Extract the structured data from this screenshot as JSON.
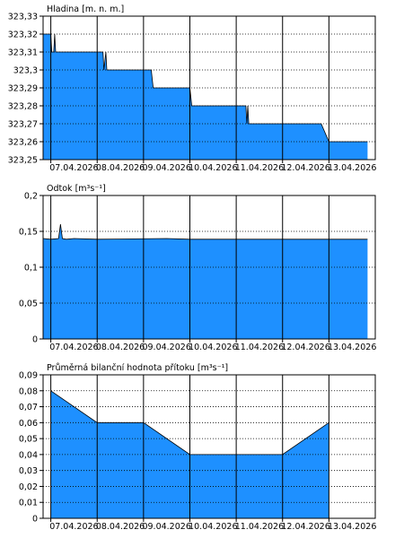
{
  "colors": {
    "fill": "#1e90ff",
    "stroke": "#000000",
    "grid": "#000000",
    "background": "#ffffff"
  },
  "chart_data": [
    {
      "type": "area",
      "title": "Hladina [m. n. m.]",
      "ylim": [
        323.25,
        323.33
      ],
      "yticks": [
        "323,33",
        "323,32",
        "323,31",
        "323,3",
        "323,29",
        "323,28",
        "323,27",
        "323,26",
        "323,25"
      ],
      "x_labels": [
        "07.04.2026",
        "08.04.2026",
        "09.04.2026",
        "10.04.2026",
        "11.04.2026",
        "12.04.2026",
        "13.04.2026"
      ],
      "x_range": [
        "06.04.2026 20:00",
        "14.04.2026 00:00"
      ],
      "grid": true,
      "series": [
        {
          "x": [
            "06.04.2026 20:00",
            "07.04.2026 00:00",
            "07.04.2026 00:30",
            "07.04.2026 01:30",
            "07.04.2026 02:00",
            "07.04.2026 02:30",
            "07.04.2026 03:30",
            "07.04.2026 04:00",
            "08.04.2026 03:00",
            "08.04.2026 03:30",
            "08.04.2026 04:30",
            "08.04.2026 05:00",
            "08.04.2026 05:30",
            "08.04.2026 06:00",
            "09.04.2026 04:00",
            "09.04.2026 05:00",
            "10.04.2026 00:00",
            "10.04.2026 01:00",
            "11.04.2026 05:00",
            "11.04.2026 05:30",
            "11.04.2026 06:00",
            "11.04.2026 06:30",
            "11.04.2026 07:00",
            "11.04.2026 08:00",
            "12.04.2026 00:00",
            "12.04.2026 01:00",
            "12.04.2026 20:00",
            "13.04.2026 00:00",
            "13.04.2026 20:00"
          ],
          "y": [
            323.32,
            323.32,
            323.31,
            323.31,
            323.32,
            323.31,
            323.31,
            323.31,
            323.31,
            323.3,
            323.31,
            323.3,
            323.3,
            323.3,
            323.3,
            323.29,
            323.29,
            323.28,
            323.28,
            323.27,
            323.28,
            323.27,
            323.27,
            323.27,
            323.27,
            323.27,
            323.27,
            323.26,
            323.26
          ]
        }
      ]
    },
    {
      "type": "area",
      "title": "Odtok [m³s⁻¹]",
      "ylim": [
        0,
        0.2
      ],
      "yticks": [
        "0,2",
        "0,15",
        "0,1",
        "0,05",
        "0"
      ],
      "x_labels": [
        "07.04.2026",
        "08.04.2026",
        "09.04.2026",
        "10.04.2026",
        "11.04.2026",
        "12.04.2026",
        "13.04.2026"
      ],
      "x_range": [
        "06.04.2026 20:00",
        "14.04.2026 00:00"
      ],
      "grid": true,
      "series": [
        {
          "x": [
            "06.04.2026 20:00",
            "07.04.2026 00:00",
            "07.04.2026 04:00",
            "07.04.2026 05:00",
            "07.04.2026 06:00",
            "07.04.2026 08:00",
            "07.04.2026 12:00",
            "08.04.2026 00:00",
            "09.04.2026 12:00",
            "10.04.2026 00:00",
            "11.04.2026 00:00",
            "12.04.2026 00:00",
            "13.04.2026 20:00"
          ],
          "y": [
            0.14,
            0.139,
            0.14,
            0.16,
            0.14,
            0.139,
            0.14,
            0.139,
            0.14,
            0.139,
            0.139,
            0.139,
            0.139
          ]
        }
      ]
    },
    {
      "type": "area",
      "title": "Průměrná bilanční hodnota přítoku [m³s⁻¹]",
      "ylim": [
        0,
        0.09
      ],
      "yticks": [
        "0,09",
        "0,08",
        "0,07",
        "0,06",
        "0,05",
        "0,04",
        "0,03",
        "0,02",
        "0,01",
        "0"
      ],
      "x_labels": [
        "07.04.2026",
        "08.04.2026",
        "09.04.2026",
        "10.04.2026",
        "11.04.2026",
        "12.04.2026",
        "13.04.2026"
      ],
      "x_range": [
        "06.04.2026 20:00",
        "14.04.2026 00:00"
      ],
      "grid": true,
      "series": [
        {
          "x": [
            "07.04.2026 00:00",
            "08.04.2026 00:00",
            "09.04.2026 00:00",
            "10.04.2026 00:00",
            "11.04.2026 00:00",
            "12.04.2026 00:00",
            "13.04.2026 00:00"
          ],
          "y": [
            0.08,
            0.06,
            0.06,
            0.04,
            0.04,
            0.04,
            0.06
          ]
        }
      ]
    }
  ]
}
